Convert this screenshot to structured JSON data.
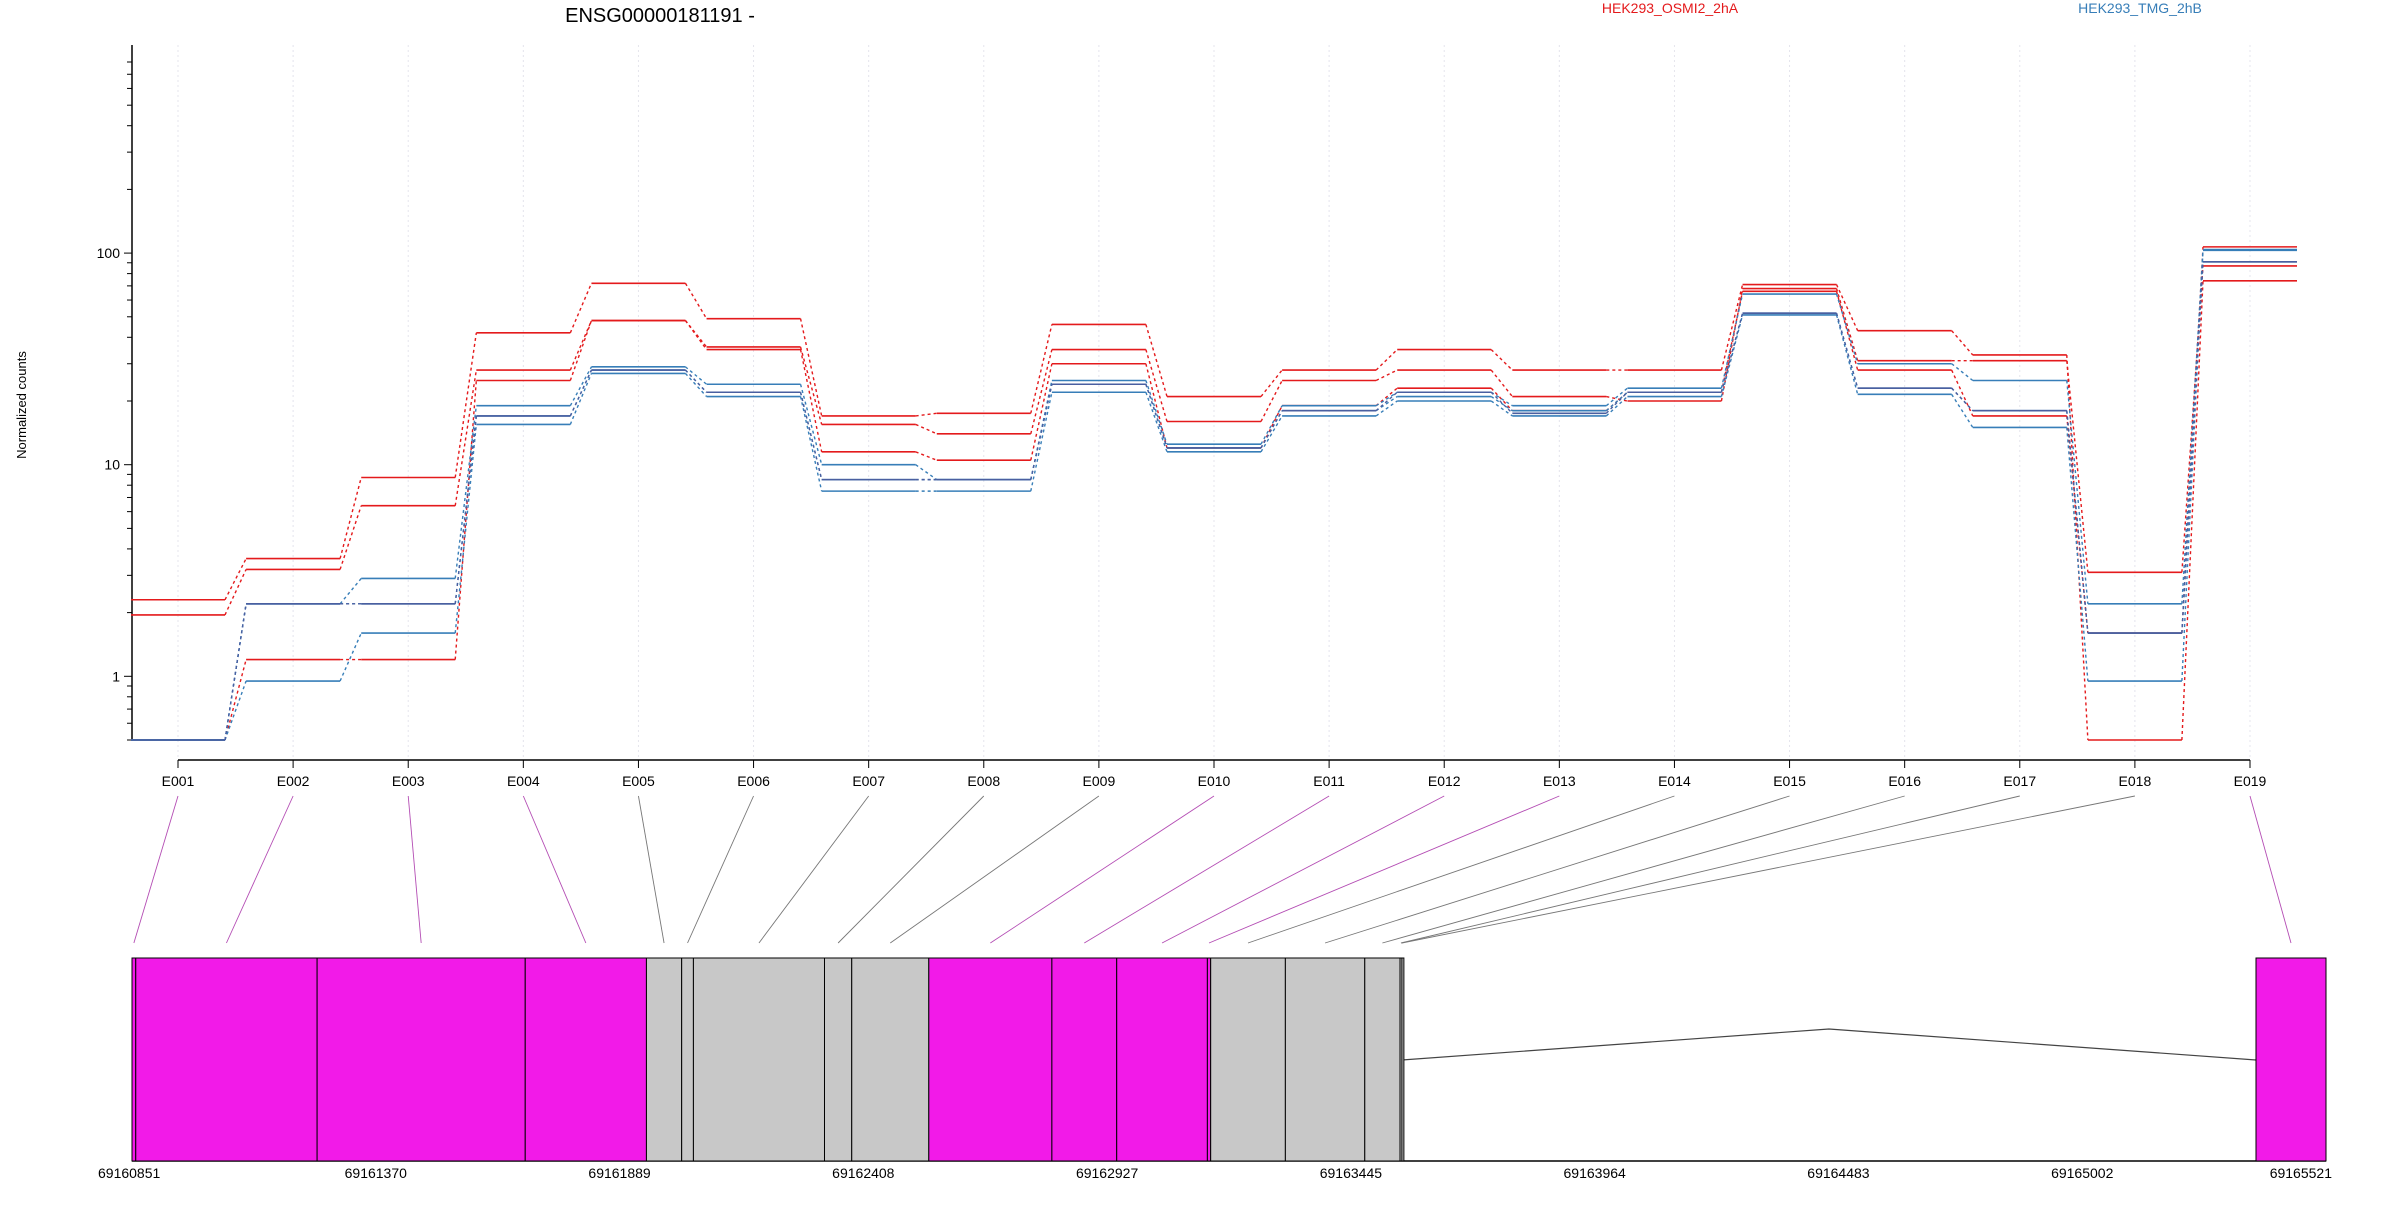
{
  "chart_data": {
    "type": "line",
    "title": "ENSG00000181191 -",
    "ylabel": "Normalized counts",
    "xlabel": "",
    "y_scale": "log",
    "ylim": [
      0.5,
      800
    ],
    "y_ticks": [
      {
        "value": 1,
        "label": "1"
      },
      {
        "value": 10,
        "label": "10"
      },
      {
        "value": 100,
        "label": "100"
      }
    ],
    "grid": "vertical dotted",
    "categories": [
      "E001",
      "E002",
      "E003",
      "E004",
      "E005",
      "E006",
      "E007",
      "E008",
      "E009",
      "E010",
      "E011",
      "E012",
      "E013",
      "E014",
      "E015",
      "E016",
      "E017",
      "E018",
      "E019"
    ],
    "legend": [
      {
        "name": "HEK293_OSMI2_2hA",
        "color": "#e41a1c",
        "position": "top-center"
      },
      {
        "name": "HEK293_TMG_2hB",
        "color": "#377eb8",
        "position": "top-right"
      }
    ],
    "series": [
      {
        "group": "HEK293_OSMI2_2hA",
        "color": "#e41a1c",
        "values": [
          2.3,
          3.6,
          8.7,
          42,
          72,
          49,
          17,
          17.5,
          46,
          21,
          28,
          35,
          28,
          28,
          71,
          43,
          33,
          0.5,
          74
        ]
      },
      {
        "group": "HEK293_OSMI2_2hA",
        "color": "#e41a1c",
        "values": [
          1.95,
          3.2,
          6.4,
          28,
          48,
          36,
          15.5,
          14,
          35,
          16,
          25,
          28,
          21,
          20,
          68,
          31,
          31,
          3.1,
          87
        ]
      },
      {
        "group": "HEK293_OSMI2_2hA",
        "color": "#e41a1c",
        "values": [
          0.5,
          1.2,
          1.2,
          25,
          48,
          35,
          11.5,
          10.5,
          30,
          12,
          19,
          23,
          18,
          22,
          66,
          28,
          17,
          1.6,
          107
        ]
      },
      {
        "group": "HEK293_TMG_2hB",
        "color": "#377eb8",
        "values": [
          0.5,
          2.2,
          2.9,
          19,
          29,
          24,
          10,
          8.5,
          25,
          12.5,
          19,
          22,
          19,
          23,
          64,
          30,
          25,
          2.2,
          103
        ]
      },
      {
        "group": "HEK293_TMG_2hB",
        "color": "#377eb8",
        "values": [
          0.5,
          2.2,
          2.2,
          17,
          28,
          22,
          8.5,
          8.5,
          24,
          12,
          18,
          21,
          18,
          22,
          52,
          23,
          18,
          1.6,
          91
        ]
      },
      {
        "group": "HEK293_TMG_2hB",
        "color": "#377eb8",
        "values": [
          0.5,
          0.95,
          1.6,
          15.5,
          27,
          21,
          7.5,
          7.5,
          22,
          11.5,
          17,
          20,
          17,
          21,
          51,
          21.5,
          15,
          0.95,
          104
        ]
      },
      {
        "group": "HEK293_TMG_2hB",
        "color": "#4a5fa0",
        "values": [
          0.5,
          2.2,
          2.2,
          17,
          28,
          22,
          8.5,
          8.5,
          24,
          12,
          18,
          22,
          17.5,
          22,
          52,
          23,
          18,
          1.6,
          91
        ]
      }
    ],
    "gene_model": {
      "coord_ticks": [
        "69160851",
        "69161370",
        "69161889",
        "69162408",
        "69162927",
        "69163445",
        "69163964",
        "69164483",
        "69165002",
        "69165521"
      ],
      "coord_range": [
        69160851,
        69165521
      ],
      "exons": [
        {
          "id": "E001",
          "start": 69160851,
          "end": 69160859,
          "highlight": true
        },
        {
          "id": "E002",
          "start": 69160859,
          "end": 69161245,
          "highlight": true
        },
        {
          "id": "E003",
          "start": 69161245,
          "end": 69161688,
          "highlight": true
        },
        {
          "id": "E004",
          "start": 69161688,
          "end": 69161946,
          "highlight": true
        },
        {
          "id": "E005",
          "start": 69161946,
          "end": 69162021,
          "highlight": false
        },
        {
          "id": "E006",
          "start": 69162021,
          "end": 69162046,
          "highlight": false
        },
        {
          "id": "E007",
          "start": 69162046,
          "end": 69162325,
          "highlight": false
        },
        {
          "id": "E008",
          "start": 69162325,
          "end": 69162383,
          "highlight": false
        },
        {
          "id": "E009",
          "start": 69162383,
          "end": 69162547,
          "highlight": false
        },
        {
          "id": "E010",
          "start": 69162547,
          "end": 69162809,
          "highlight": true
        },
        {
          "id": "E011",
          "start": 69162809,
          "end": 69162947,
          "highlight": true
        },
        {
          "id": "E012",
          "start": 69162947,
          "end": 69163140,
          "highlight": true
        },
        {
          "id": "E013",
          "start": 69163140,
          "end": 69163147,
          "highlight": true
        },
        {
          "id": "E014",
          "start": 69163147,
          "end": 69163306,
          "highlight": false
        },
        {
          "id": "E015",
          "start": 69163306,
          "end": 69163475,
          "highlight": false
        },
        {
          "id": "E016",
          "start": 69163475,
          "end": 69163550,
          "highlight": false
        },
        {
          "id": "E017",
          "start": 69163550,
          "end": 69163554,
          "highlight": false
        },
        {
          "id": "E018",
          "start": 69163554,
          "end": 69163554,
          "highlight": false
        },
        {
          "id": "E019",
          "start": 69165372,
          "end": 69165521,
          "highlight": true
        }
      ]
    }
  },
  "colors": {
    "highlight_exon": "#f21ae8",
    "plain_exon": "#c8c8c8",
    "highlight_link": "#b44db4",
    "plain_link": "#777777",
    "osmi_series": "#e41a1c",
    "tmg_series": "#377eb8"
  }
}
